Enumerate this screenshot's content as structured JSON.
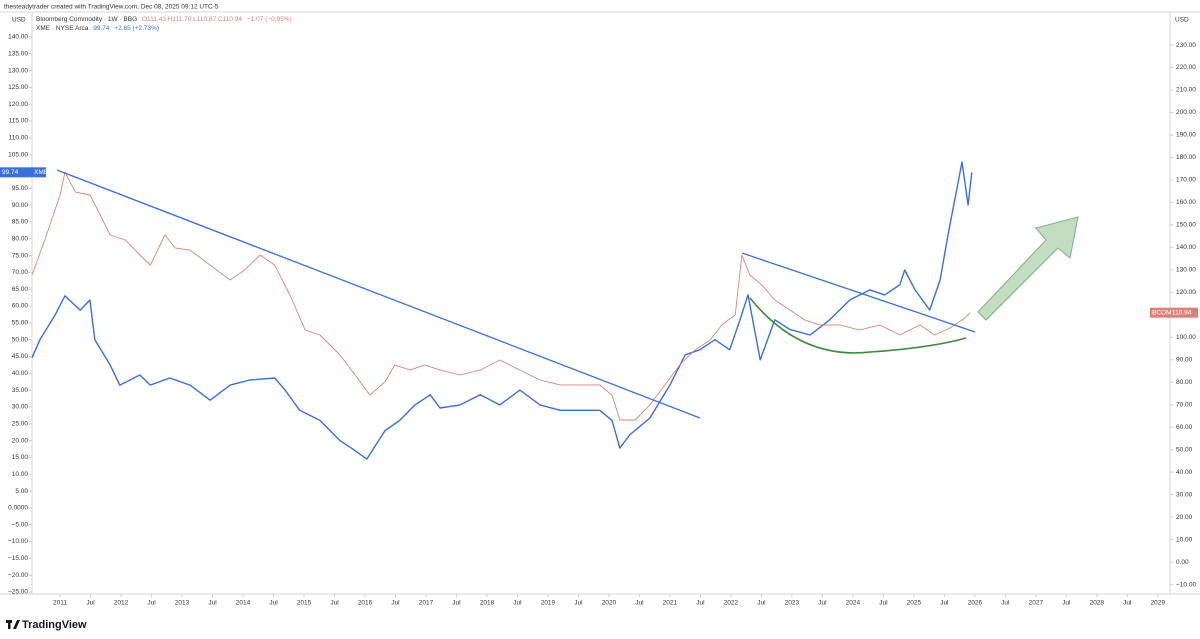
{
  "header": "thesteadytrader created with TradingView.com, Dec 08, 2025 09:12 UTC-5",
  "footer": "TradingView",
  "chart_data": {
    "type": "line",
    "legend": [
      {
        "title": "Bloomberg Commodity · 1W · BBG",
        "ohlc": "O111.43 H111.70 L110.87 C110.94",
        "change": "−1.07 (−0.95%)"
      },
      {
        "title": "XME · NYSE Arca",
        "change": "+2.65 (+2.73%)"
      }
    ],
    "y_unit": "USD",
    "y2_unit": "USD",
    "xlim": [
      2010.54,
      2029.2
    ],
    "xticks": [
      2011,
      {
        "value": 2011.5,
        "label": "Jul"
      },
      2012,
      {
        "value": 2012.5,
        "label": "Jul"
      },
      2013,
      {
        "value": 2013.5,
        "label": "Jul"
      },
      2014,
      {
        "value": 2014.5,
        "label": "Jul"
      },
      2015,
      {
        "value": 2015.5,
        "label": "Jul"
      },
      2016,
      {
        "value": 2016.5,
        "label": "Jul"
      },
      2017,
      {
        "value": 2017.5,
        "label": "Jul"
      },
      2018,
      {
        "value": 2018.5,
        "label": "Jul"
      },
      2019,
      {
        "value": 2019.5,
        "label": "Jul"
      },
      2020,
      {
        "value": 2020.5,
        "label": "Jul"
      },
      2021,
      {
        "value": 2021.5,
        "label": "Jul"
      },
      2022,
      {
        "value": 2022.5,
        "label": "Jul"
      },
      2023,
      {
        "value": 2023.5,
        "label": "Jul"
      },
      2024,
      {
        "value": 2024.5,
        "label": "Jul"
      },
      2025,
      {
        "value": 2025.5,
        "label": "Jul"
      },
      2026,
      {
        "value": 2026.5,
        "label": "Jul"
      },
      2027,
      {
        "value": 2027.5,
        "label": "Jul"
      },
      2028,
      {
        "value": 2028.5,
        "label": "Jul"
      },
      2029
    ],
    "ylim": [
      -25.6,
      147.4
    ],
    "yticks": [
      {
        "value": 140,
        "label": "140.00"
      },
      {
        "value": 135,
        "label": "135.00"
      },
      {
        "value": 130,
        "label": "130.00"
      },
      {
        "value": 125,
        "label": "125.00"
      },
      {
        "value": 120,
        "label": "120.00"
      },
      {
        "value": 115,
        "label": "115.00"
      },
      {
        "value": 110,
        "label": "110.00"
      },
      {
        "value": 105,
        "label": "105.00"
      },
      {
        "value": 100,
        "label": "100.00"
      },
      {
        "value": 95,
        "label": "95.00"
      },
      {
        "value": 90,
        "label": "90.00"
      },
      {
        "value": 85,
        "label": "85.00"
      },
      {
        "value": 80,
        "label": "80.00"
      },
      {
        "value": 75,
        "label": "75.00"
      },
      {
        "value": 70,
        "label": "70.00"
      },
      {
        "value": 65,
        "label": "65.00"
      },
      {
        "value": 60,
        "label": "60.00"
      },
      {
        "value": 55,
        "label": "55.00"
      },
      {
        "value": 50,
        "label": "50.00"
      },
      {
        "value": 45,
        "label": "45.00"
      },
      {
        "value": 40,
        "label": "40.00"
      },
      {
        "value": 35,
        "label": "35.00"
      },
      {
        "value": 30,
        "label": "30.00"
      },
      {
        "value": 25,
        "label": "25.00"
      },
      {
        "value": 20,
        "label": "20.00"
      },
      {
        "value": 15,
        "label": "15.00"
      },
      {
        "value": 10,
        "label": "10.00"
      },
      {
        "value": 5,
        "label": "5.00"
      },
      {
        "value": 0,
        "label": "0.0000"
      },
      {
        "value": -5,
        "label": "−5.00"
      },
      {
        "value": -10,
        "label": "−10.00"
      },
      {
        "value": -15,
        "label": "−15.00"
      },
      {
        "value": -20,
        "label": "−20.00"
      },
      {
        "value": -25,
        "label": "−25.00"
      }
    ],
    "y2lim": [
      -14.2,
      244.7
    ],
    "y2ticks": [
      {
        "value": 230,
        "label": "230.00"
      },
      {
        "value": 220,
        "label": "220.00"
      },
      {
        "value": 210,
        "label": "210.00"
      },
      {
        "value": 200,
        "label": "200.00"
      },
      {
        "value": 190,
        "label": "190.00"
      },
      {
        "value": 180,
        "label": "180.00"
      },
      {
        "value": 170,
        "label": "170.00"
      },
      {
        "value": 160,
        "label": "160.00"
      },
      {
        "value": 150,
        "label": "150.00"
      },
      {
        "value": 140,
        "label": "140.00"
      },
      {
        "value": 130,
        "label": "130.00"
      },
      {
        "value": 120,
        "label": "120.00"
      },
      {
        "value": 110,
        "label": "110.00"
      },
      {
        "value": 100,
        "label": "100.00"
      },
      {
        "value": 90,
        "label": "90.00"
      },
      {
        "value": 80,
        "label": "80.00"
      },
      {
        "value": 70,
        "label": "70.00"
      },
      {
        "value": 60,
        "label": "60.00"
      },
      {
        "value": 50,
        "label": "50.00"
      },
      {
        "value": 40,
        "label": "40.00"
      },
      {
        "value": 30,
        "label": "30.00"
      },
      {
        "value": 20,
        "label": "20.00"
      },
      {
        "value": 10,
        "label": "10.00"
      },
      {
        "value": 0,
        "label": "0.00"
      },
      {
        "value": -10,
        "label": "−10.00"
      }
    ],
    "series": [
      {
        "name": "XME",
        "color": "#3a6fd8",
        "axis": "y",
        "x": [
          2010.54,
          2010.67,
          2010.92,
          2011.08,
          2011.33,
          2011.49,
          2011.57,
          2011.82,
          2011.98,
          2012.31,
          2012.48,
          2012.8,
          2013.13,
          2013.46,
          2013.79,
          2014.11,
          2014.52,
          2014.69,
          2014.93,
          2015.26,
          2015.59,
          2015.84,
          2016.03,
          2016.33,
          2016.57,
          2016.82,
          2017.07,
          2017.23,
          2017.56,
          2017.89,
          2018.21,
          2018.54,
          2018.87,
          2019.2,
          2019.52,
          2019.85,
          2020.05,
          2020.18,
          2020.34,
          2020.67,
          2021.0,
          2021.25,
          2021.49,
          2021.74,
          2021.98,
          2022.15,
          2022.28,
          2022.48,
          2022.72,
          2022.97,
          2023.3,
          2023.62,
          2023.95,
          2024.28,
          2024.52,
          2024.77,
          2024.85,
          2025.02,
          2025.26,
          2025.43,
          2025.56,
          2025.67,
          2025.79,
          2025.89,
          2025.95
        ],
        "values": [
          44.6,
          50,
          57.4,
          63,
          58.8,
          61.8,
          50,
          42.5,
          36.5,
          39.5,
          36.5,
          38.6,
          36.5,
          32,
          36.5,
          38,
          38.6,
          35,
          29,
          26,
          20,
          17,
          14.5,
          23,
          26,
          30.6,
          33.6,
          29.7,
          30.6,
          33.6,
          30.6,
          35,
          30.6,
          29,
          29,
          29,
          26,
          17.8,
          21.7,
          26.7,
          36.5,
          45.5,
          47,
          50,
          47,
          55.9,
          63.3,
          44,
          55.9,
          53,
          51.4,
          55.9,
          61.8,
          64.8,
          63.3,
          66.3,
          70.7,
          64.8,
          58.8,
          67.7,
          81.1,
          91.5,
          102.8,
          90,
          99.74
        ]
      },
      {
        "name": "BCOM",
        "color": "#d9827a",
        "axis": "y2",
        "x": [
          2010.54,
          2010.75,
          2011.0,
          2011.08,
          2011.25,
          2011.49,
          2011.66,
          2011.82,
          2012.07,
          2012.31,
          2012.48,
          2012.72,
          2012.89,
          2013.13,
          2013.46,
          2013.79,
          2014.03,
          2014.28,
          2014.52,
          2014.77,
          2015.02,
          2015.26,
          2015.59,
          2015.84,
          2016.08,
          2016.33,
          2016.49,
          2016.74,
          2016.98,
          2017.23,
          2017.56,
          2017.89,
          2018.21,
          2018.54,
          2018.87,
          2019.2,
          2019.52,
          2019.85,
          2020.05,
          2020.18,
          2020.43,
          2020.67,
          2020.92,
          2021.16,
          2021.41,
          2021.66,
          2021.85,
          2022.07,
          2022.18,
          2022.31,
          2022.51,
          2022.72,
          2022.97,
          2023.21,
          2023.46,
          2023.79,
          2024.11,
          2024.44,
          2024.77,
          2025.1,
          2025.34,
          2025.59,
          2025.84,
          2025.92
        ],
        "values": [
          127.7,
          143.3,
          163.3,
          173.5,
          164.6,
          163.3,
          154.4,
          145.5,
          143.3,
          136.6,
          132.1,
          145.5,
          139.7,
          138.8,
          132.1,
          125.5,
          130,
          136.6,
          132.1,
          118.8,
          103.2,
          101,
          92.1,
          83.2,
          74.3,
          80.3,
          87.7,
          85.4,
          87.7,
          85.4,
          83.2,
          85.4,
          89.9,
          85.4,
          81,
          78.8,
          78.8,
          78.8,
          74.3,
          63.2,
          63.2,
          69.9,
          78.8,
          87.7,
          94.3,
          98.8,
          105.5,
          109.9,
          136.6,
          127.7,
          123.2,
          116.6,
          112.1,
          107.7,
          105.5,
          105.5,
          103.2,
          105.5,
          101,
          105.5,
          101,
          104.1,
          108.6,
          110.94
        ]
      }
    ]
  }
}
